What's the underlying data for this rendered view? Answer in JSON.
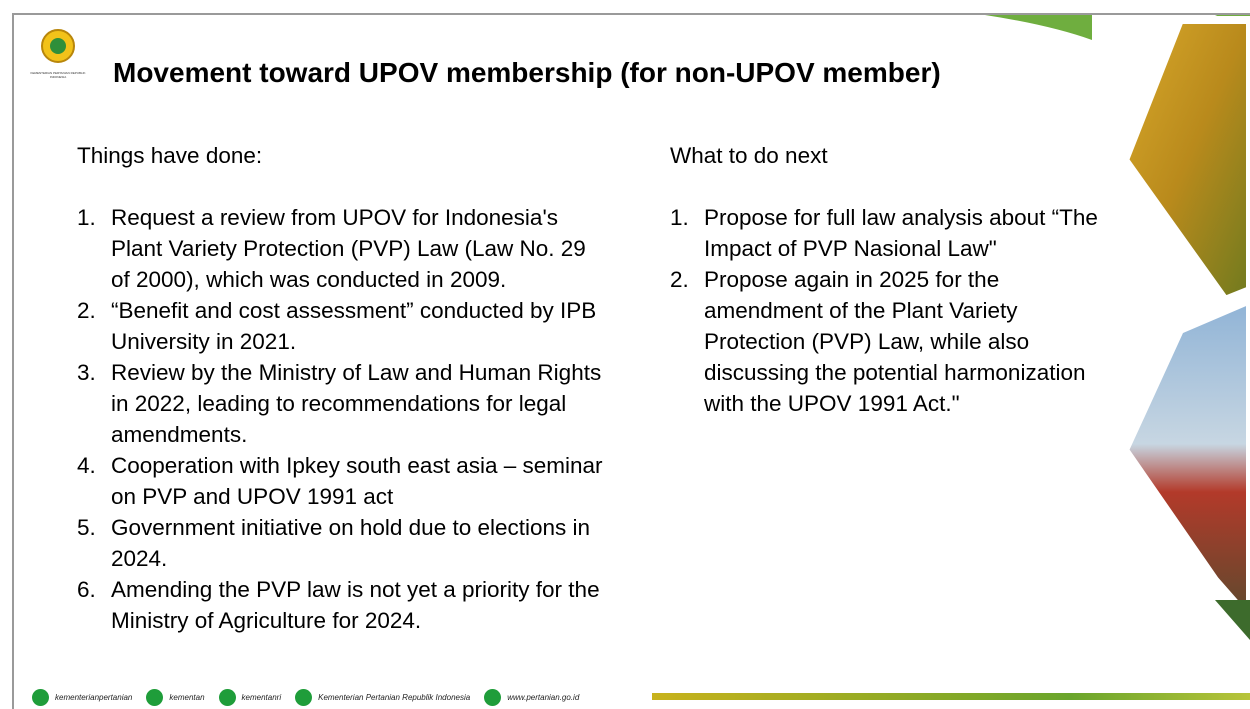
{
  "logo": {
    "text": "KEMENTERIAN PERTANIAN REPUBLIK INDONESIA"
  },
  "header": {
    "title": "Movement toward UPOV membership (for non-UPOV member)"
  },
  "left": {
    "heading": "Things have done:",
    "items": [
      {
        "number": "1.",
        "text": "Request a review from UPOV for Indonesia's Plant Variety Protection (PVP) Law (Law No. 29 of 2000), which was conducted in 2009."
      },
      {
        "number": "2.",
        "text": "“Benefit and cost assessment” conducted by IPB University in 2021."
      },
      {
        "number": "3.",
        "text": "Review by the Ministry of Law and Human Rights in 2022, leading to recommendations for legal amendments."
      },
      {
        "number": "4.",
        "text": "Cooperation with Ipkey south east asia – seminar on PVP and UPOV 1991 act"
      },
      {
        "number": "5.",
        "text": "Government initiative on hold due to elections in 2024."
      },
      {
        "number": "6.",
        "text": "Amending the PVP law is not yet a priority for the Ministry of Agriculture for 2024."
      }
    ]
  },
  "right": {
    "heading": "What to do next",
    "items": [
      {
        "number": "1.",
        "text": "Propose for full law analysis about “The Impact of PVP Nasional Law\""
      },
      {
        "number": "2.",
        "text": "Propose again in 2025 for the amendment of the Plant Variety Protection (PVP) Law, while also discussing the potential harmonization with the UPOV 1991 Act.\""
      }
    ]
  },
  "footer": {
    "items": [
      "kementerianpertanian",
      "kementan",
      "kementanri",
      "Kementerian Pertanian Republik Indonesia",
      "www.pertanian.go.id"
    ]
  }
}
